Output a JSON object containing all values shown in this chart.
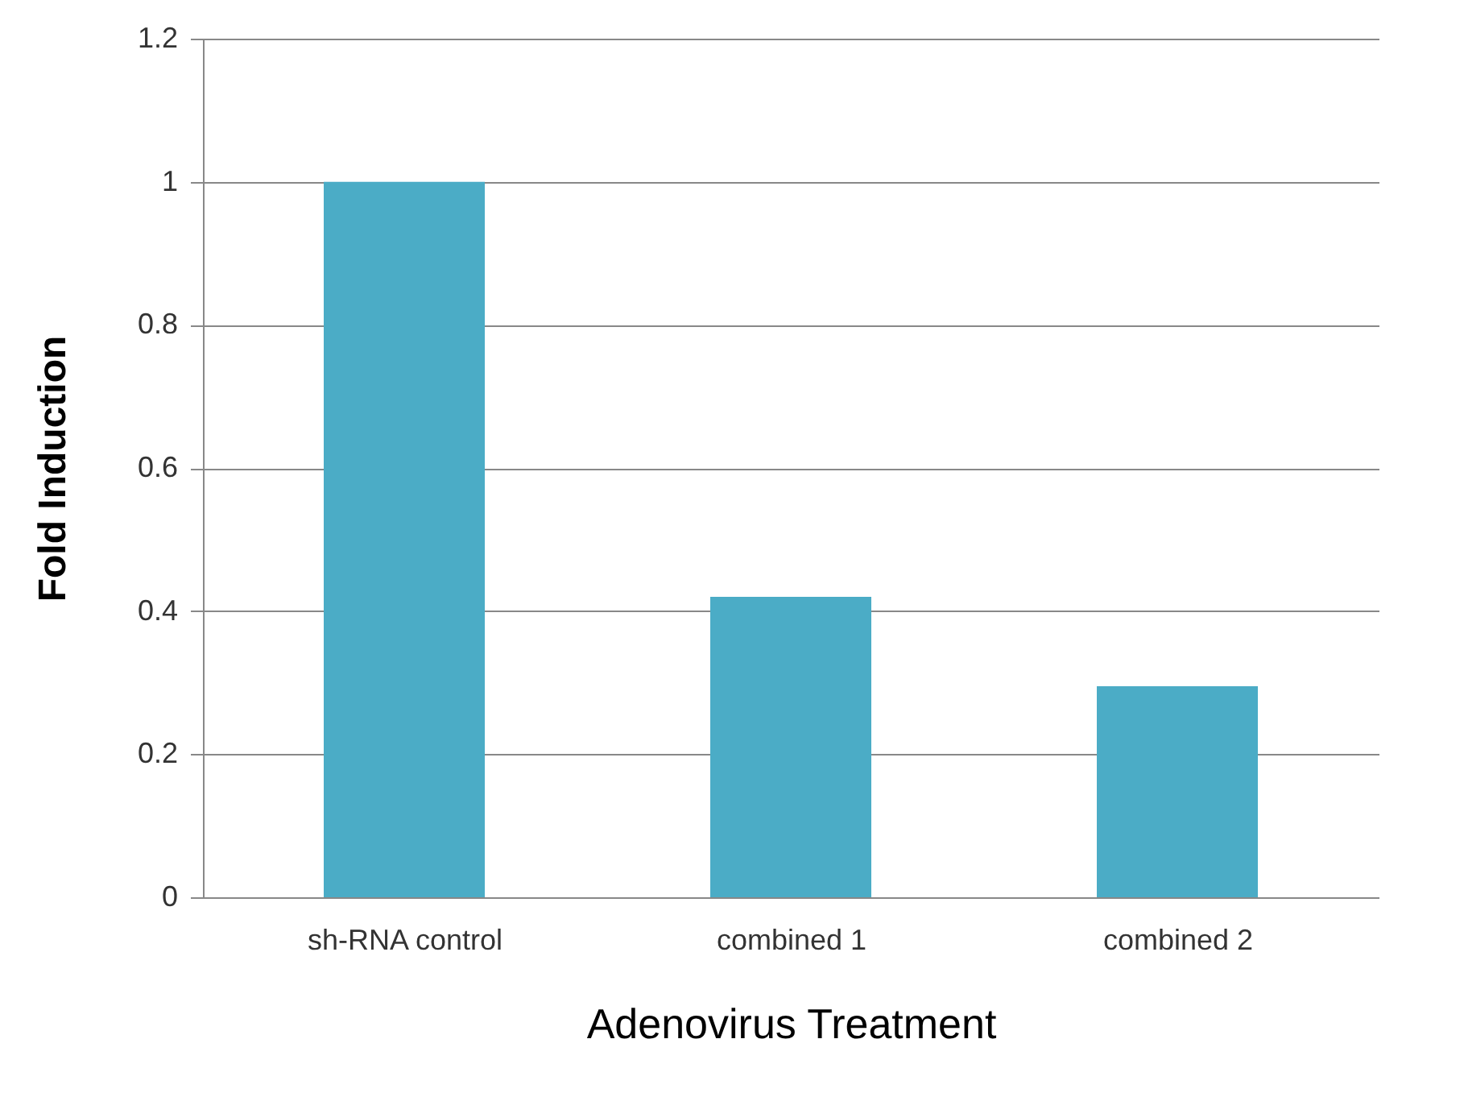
{
  "chart_data": {
    "type": "bar",
    "categories": [
      "sh-RNA control",
      "combined 1",
      "combined 2"
    ],
    "values": [
      1.0,
      0.42,
      0.295
    ],
    "color": "#4bacc6",
    "ylim": [
      0,
      1.2
    ],
    "yticks": [
      0,
      0.2,
      0.4,
      0.6,
      0.8,
      1,
      1.2
    ],
    "grid": "y",
    "xlabel": "Adenovirus Treatment",
    "ylabel": "Fold Induction"
  }
}
